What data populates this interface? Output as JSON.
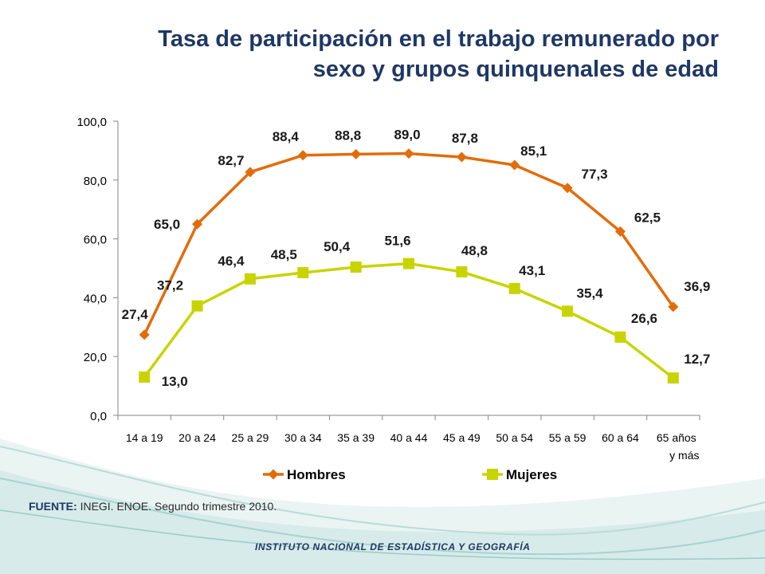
{
  "title": {
    "line1": "Tasa de participación en el trabajo remunerado por",
    "line2": "sexo y grupos quinquenales de edad"
  },
  "chart_data": {
    "type": "line",
    "title": "",
    "xlabel": "",
    "ylabel": "",
    "categories": [
      "14 a 19",
      "20 a 24",
      "25 a 29",
      "30 a 34",
      "35 a 39",
      "40 a 44",
      "45 a 49",
      "50 a 54",
      "55 a 59",
      "60 a 64",
      "65 años y más"
    ],
    "y_ticks": [
      "0,0",
      "20,0",
      "40,0",
      "60,0",
      "80,0",
      "100,0"
    ],
    "ylim": [
      0,
      100
    ],
    "grid": false,
    "legend_position": "bottom",
    "series": [
      {
        "name": "Hombres",
        "color": "#e36c0a",
        "marker": "diamond",
        "values": [
          27.4,
          65.0,
          82.7,
          88.4,
          88.8,
          89.0,
          87.8,
          85.1,
          77.3,
          62.5,
          36.9
        ],
        "labels": [
          "27,4",
          "65,0",
          "82,7",
          "88,4",
          "88,8",
          "89,0",
          "87,8",
          "85,1",
          "77,3",
          "62,5",
          "36,9"
        ]
      },
      {
        "name": "Mujeres",
        "color": "#c8d400",
        "marker": "square",
        "values": [
          13.0,
          37.2,
          46.4,
          48.5,
          50.4,
          51.6,
          48.8,
          43.1,
          35.4,
          26.6,
          12.7
        ],
        "labels": [
          "13,0",
          "37,2",
          "46,4",
          "48,5",
          "50,4",
          "51,6",
          "48,8",
          "43,1",
          "35,4",
          "26,6",
          "12,7"
        ]
      }
    ]
  },
  "source": {
    "label": "FUENTE:",
    "text": "INEGI. ENOE. Segundo trimestre 2010."
  },
  "footer": {
    "institute": "INSTITUTO NACIONAL DE ESTADÍSTICA Y GEOGRAFÍA"
  }
}
